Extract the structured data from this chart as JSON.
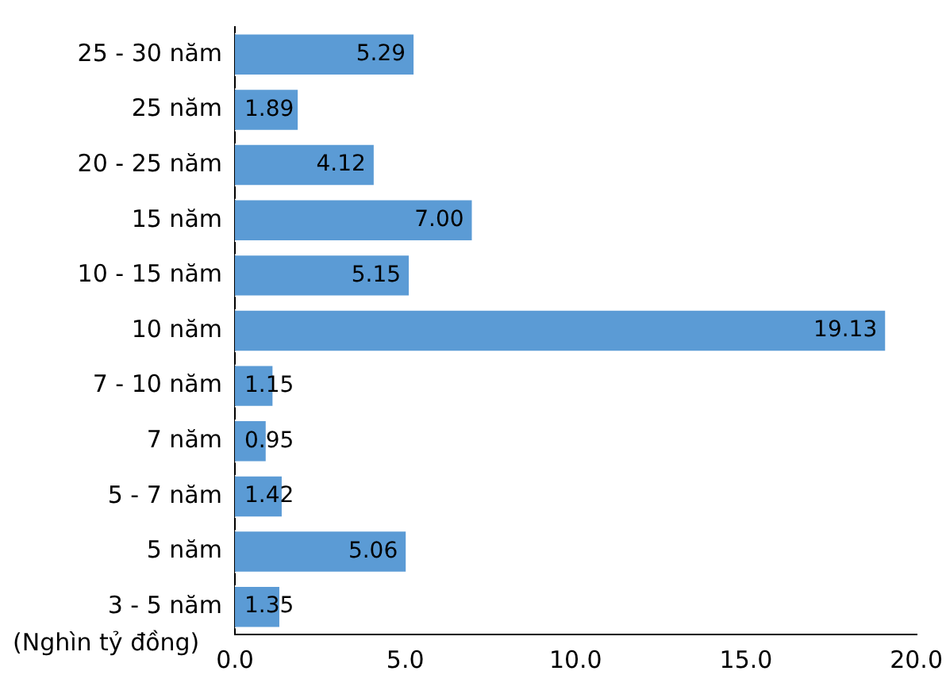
{
  "chart_data": {
    "type": "bar",
    "orientation": "horizontal",
    "categories": [
      "25 - 30 năm",
      "25 năm",
      "20 - 25 năm",
      "15 năm",
      "10 - 15 năm",
      "10 năm",
      "7 - 10 năm",
      "7 năm",
      "5 - 7 năm",
      "5 năm",
      "3 - 5 năm"
    ],
    "values": [
      5.29,
      1.89,
      4.12,
      7.0,
      5.15,
      19.13,
      1.15,
      0.95,
      1.42,
      5.06,
      1.35
    ],
    "value_labels": [
      "5.29",
      "1.89",
      "4.12",
      "7.00",
      "5.15",
      "19.13",
      "1.15",
      "0.95",
      "1.42",
      "5.06",
      "1.35"
    ],
    "color": "#5b9bd5",
    "xlim": [
      0,
      20
    ],
    "xticks": [
      {
        "value": 0,
        "label": "0.0"
      },
      {
        "value": 5,
        "label": "5.0"
      },
      {
        "value": 10,
        "label": "10.0"
      },
      {
        "value": 15,
        "label": "15.0"
      },
      {
        "value": 20,
        "label": "20.0"
      }
    ],
    "grid": false,
    "legend": false,
    "annotations": [
      "(Nghìn tỷ đồng)"
    ]
  }
}
